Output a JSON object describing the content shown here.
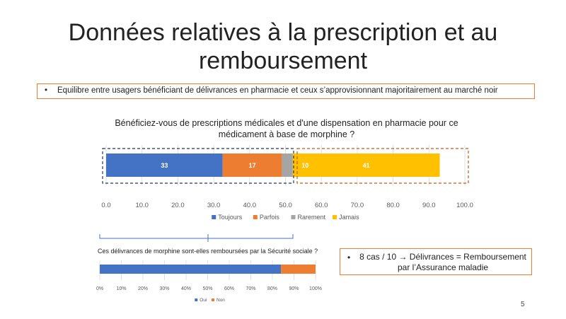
{
  "slide": {
    "title": "Données relatives à la prescription et au remboursement",
    "page_number": "5"
  },
  "callouts": {
    "top": {
      "bullet": "•",
      "text": "Equilibre entre usagers bénéficiant de délivrances en pharmacie et ceux s’approvisionnant majoritairement au marché noir"
    },
    "bottom": {
      "bullet": "•",
      "text": "8 cas / 10 → Délivrances = Remboursement par l’Assurance maladie"
    }
  },
  "colors": {
    "blue": "#4472C4",
    "orange": "#ED7D31",
    "gray": "#A5A5A5",
    "yellow": "#FFC000",
    "dashed_blue": "#1F3864",
    "dashed_orange": "#C55A11",
    "axis_text": "#595959"
  },
  "chart_data": [
    {
      "type": "bar",
      "orientation": "horizontal",
      "stacked": true,
      "title": "Bénéficiez-vous de prescriptions médicales et d'une dispensation en pharmacie pour ce médicament à base de morphine ?",
      "series": [
        {
          "name": "Toujours",
          "values": [
            32.5
          ],
          "label": "33",
          "color": "#4472C4"
        },
        {
          "name": "Parfois",
          "values": [
            16.5
          ],
          "label": "17",
          "color": "#ED7D31"
        },
        {
          "name": "Rarement",
          "values": [
            3.0
          ],
          "label": "",
          "color": "#A5A5A5"
        },
        {
          "name": "Jamais",
          "values": [
            41.0
          ],
          "label": "41",
          "color": "#FFC000"
        }
      ],
      "overlay_label": {
        "text": "10",
        "at": 55.5
      },
      "xlim": [
        0,
        100
      ],
      "x_ticks": [
        "0.0",
        "10.0",
        "20.0",
        "30.0",
        "40.0",
        "50.0",
        "60.0",
        "70.0",
        "80.0",
        "90.0",
        "100.0"
      ],
      "grid": true,
      "legend": "bottom"
    },
    {
      "type": "bar",
      "orientation": "horizontal",
      "stacked": true,
      "title": "Ces délivrances de morphine sont-elles remboursées par la Sécurité sociale ?",
      "series": [
        {
          "name": "Oui",
          "values": [
            84
          ],
          "color": "#4472C4"
        },
        {
          "name": "Non",
          "values": [
            16
          ],
          "color": "#ED7D31"
        }
      ],
      "xlim": [
        0,
        100
      ],
      "x_ticks": [
        "0%",
        "10%",
        "20%",
        "30%",
        "40%",
        "50%",
        "60%",
        "70%",
        "80%",
        "90%",
        "100%"
      ],
      "grid": true,
      "legend": "bottom"
    }
  ]
}
